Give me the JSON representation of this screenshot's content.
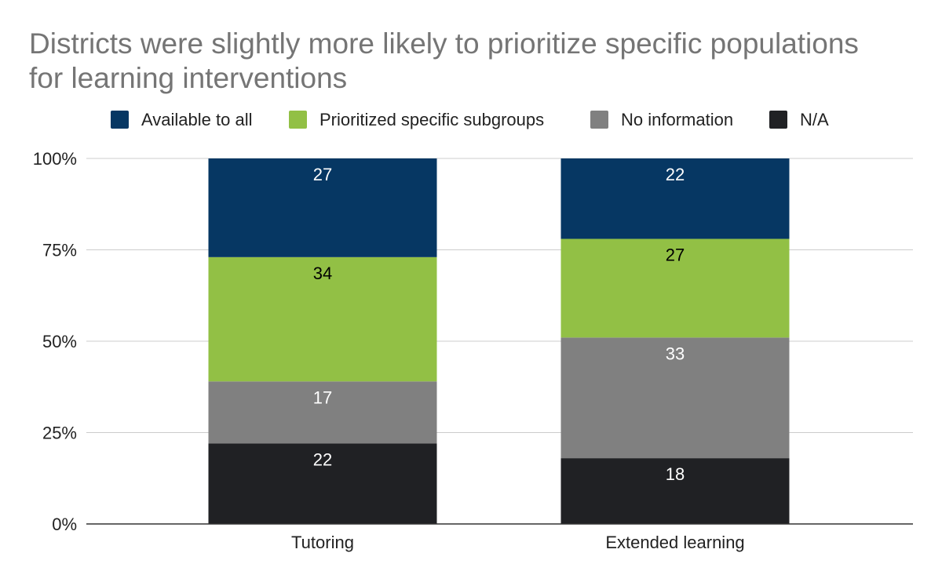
{
  "chart_data": {
    "type": "stacked-bar-100",
    "title": "Districts were slightly more likely to prioritize specific populations for learning interventions",
    "categories": [
      "Tutoring",
      "Extended learning"
    ],
    "series": [
      {
        "name": "N/A",
        "color": "#202124",
        "label_color": "#ffffff",
        "values": [
          22,
          18
        ]
      },
      {
        "name": "No information",
        "color": "#808080",
        "label_color": "#ffffff",
        "values": [
          17,
          33
        ]
      },
      {
        "name": "Prioritized specific subgroups",
        "color": "#92c045",
        "label_color": "#000000",
        "values": [
          34,
          27
        ]
      },
      {
        "name": "Available to all",
        "color": "#063763",
        "label_color": "#ffffff",
        "values": [
          27,
          22
        ]
      }
    ],
    "legend_order": [
      "Available to all",
      "Prioritized specific subgroups",
      "No information",
      "N/A"
    ],
    "y_ticks": [
      "0%",
      "25%",
      "50%",
      "75%",
      "100%"
    ],
    "ylim": [
      0,
      100
    ],
    "xlabel": "",
    "ylabel": "",
    "grid": true,
    "legend_position": "top"
  }
}
